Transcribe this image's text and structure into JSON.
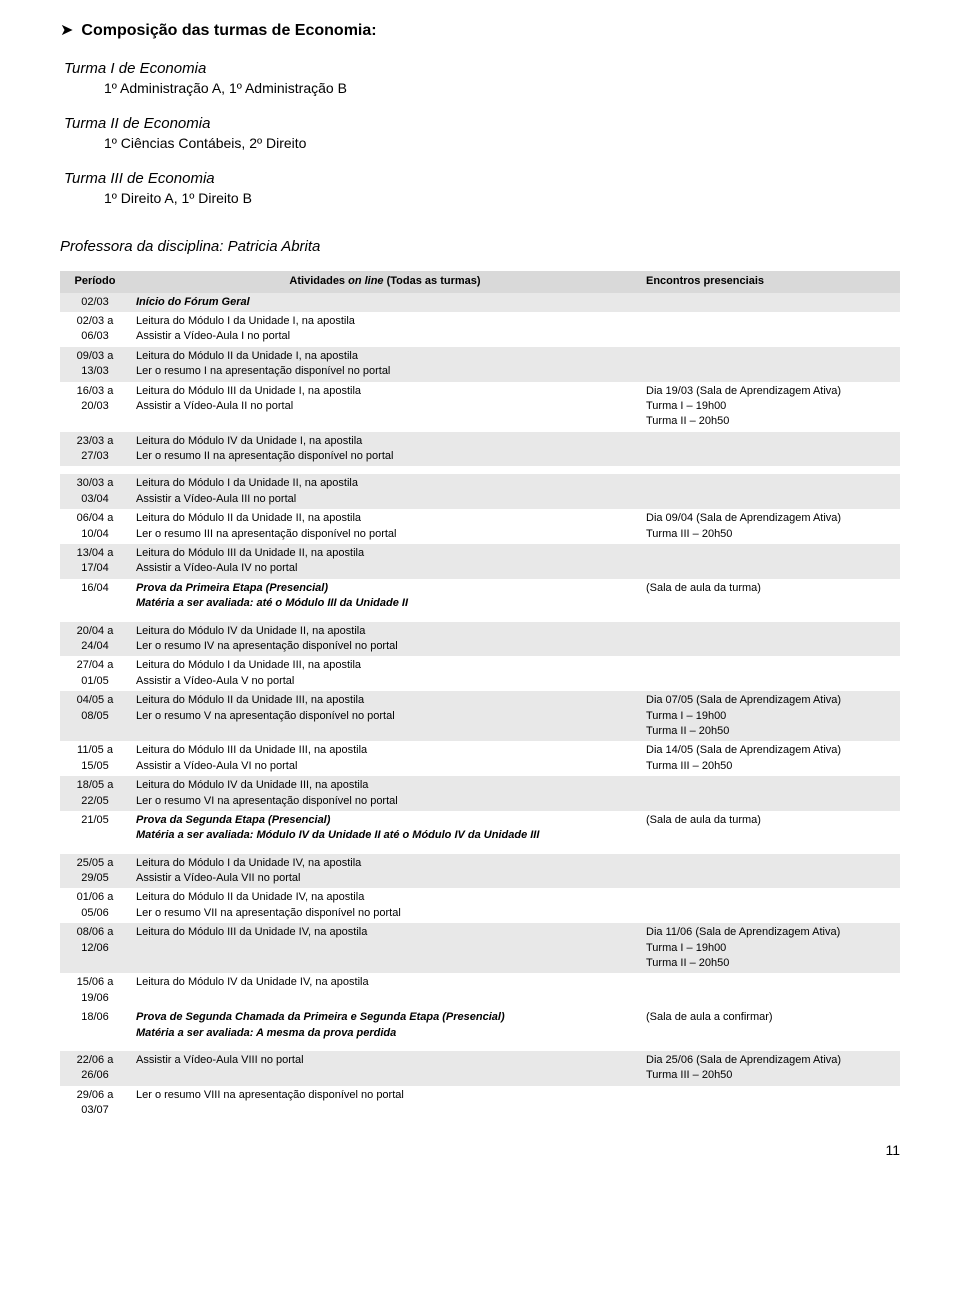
{
  "header": {
    "arrow": "➤",
    "title": "Composição das turmas de Economia:"
  },
  "turmas": [
    {
      "name": "Turma I de Economia",
      "desc": "1º Administração A, 1º Administração B"
    },
    {
      "name": "Turma II de Economia",
      "desc": "1º Ciências Contábeis, 2º Direito"
    },
    {
      "name": "Turma III de Economia",
      "desc": "1º Direito A, 1º Direito B"
    }
  ],
  "professor": "Professora da disciplina: Patricia Abrita",
  "table": {
    "headers": {
      "periodo": "Período",
      "atividades": "Atividades on line (Todas as turmas)",
      "encontros": "Encontros presenciais"
    },
    "atividades_italic_part": "on line",
    "blocks": [
      {
        "rows": [
          {
            "grey": true,
            "period": "02/03",
            "act_bi": "Início do Fórum Geral",
            "enc": ""
          },
          {
            "grey": false,
            "period": "02/03 a 06/03",
            "act": "Leitura do Módulo I da Unidade I, na apostila\nAssistir a Vídeo-Aula I no portal",
            "enc": ""
          },
          {
            "grey": true,
            "period": "09/03 a 13/03",
            "act": "Leitura do Módulo II da Unidade I, na apostila\nLer o resumo I na apresentação disponível no portal",
            "enc": ""
          },
          {
            "grey": false,
            "period": "16/03 a 20/03",
            "act": "Leitura do Módulo III da Unidade I, na apostila\nAssistir a Vídeo-Aula II no portal",
            "enc": "Dia 19/03 (Sala de Aprendizagem Ativa)\nTurma I – 19h00\nTurma II – 20h50"
          },
          {
            "grey": true,
            "period": "23/03 a 27/03",
            "act": "Leitura do Módulo IV da Unidade I, na apostila\nLer o resumo II na apresentação disponível no portal",
            "enc": ""
          }
        ]
      },
      {
        "rows": [
          {
            "grey": true,
            "period": "30/03 a 03/04",
            "act": "Leitura do Módulo I da Unidade II, na apostila\nAssistir a Vídeo-Aula III no portal",
            "enc": ""
          },
          {
            "grey": false,
            "period": "06/04 a 10/04",
            "act": "Leitura do Módulo II da Unidade II, na apostila\nLer o resumo III na apresentação disponível no portal",
            "enc": "Dia 09/04 (Sala de Aprendizagem Ativa)\nTurma III – 20h50"
          },
          {
            "grey": true,
            "period": "13/04 a 17/04",
            "act": "Leitura do Módulo III da Unidade II, na apostila\nAssistir a Vídeo-Aula IV no portal",
            "enc": ""
          },
          {
            "grey": false,
            "period": "16/04",
            "act_bi": "Prova da Primeira Etapa (Presencial)\nMatéria a ser avaliada: até o Módulo III da Unidade II",
            "enc": "(Sala de aula da turma)"
          }
        ]
      },
      {
        "rows": [
          {
            "grey": true,
            "period": "20/04 a 24/04",
            "act": "Leitura do Módulo IV da Unidade II, na apostila\nLer o resumo IV na apresentação disponível no portal",
            "enc": ""
          },
          {
            "grey": false,
            "period": "27/04 a 01/05",
            "act": "Leitura do Módulo I da Unidade III, na apostila\nAssistir a Vídeo-Aula V no portal",
            "enc": ""
          },
          {
            "grey": true,
            "period": "04/05 a 08/05",
            "act": "Leitura do Módulo II da Unidade III, na apostila\nLer o resumo V na apresentação disponível no portal",
            "enc": "Dia 07/05 (Sala de Aprendizagem Ativa)\nTurma I – 19h00\nTurma II – 20h50"
          },
          {
            "grey": false,
            "period": "11/05 a 15/05",
            "act": "Leitura do Módulo III da Unidade III, na apostila\nAssistir a Vídeo-Aula VI no portal",
            "enc": "Dia 14/05 (Sala de Aprendizagem Ativa)\nTurma III – 20h50"
          },
          {
            "grey": true,
            "period": "18/05 a 22/05",
            "act": "Leitura do Módulo IV da Unidade III, na apostila\nLer o resumo VI na apresentação disponível no portal",
            "enc": ""
          },
          {
            "grey": false,
            "period": "21/05",
            "act_bi": "Prova da Segunda Etapa (Presencial)\nMatéria a ser avaliada: Módulo IV da Unidade II até o Módulo IV da Unidade III",
            "enc": "(Sala de aula da turma)"
          }
        ]
      },
      {
        "rows": [
          {
            "grey": true,
            "period": "25/05 a 29/05",
            "act": "Leitura do Módulo I da Unidade IV, na apostila\nAssistir a Vídeo-Aula VII no portal",
            "enc": ""
          },
          {
            "grey": false,
            "period": "01/06 a 05/06",
            "act": "Leitura do Módulo II da Unidade IV, na apostila\nLer o resumo VII na apresentação disponível no portal",
            "enc": ""
          },
          {
            "grey": true,
            "period": "08/06 a 12/06",
            "act": "Leitura do Módulo III da Unidade IV, na apostila",
            "enc": "Dia 11/06 (Sala de Aprendizagem Ativa)\nTurma I – 19h00\nTurma II – 20h50"
          },
          {
            "grey": false,
            "period": "15/06 a 19/06",
            "act": "Leitura do Módulo IV da Unidade IV, na apostila",
            "enc": ""
          },
          {
            "grey": false,
            "period": "18/06",
            "act_bi": "Prova de Segunda Chamada da Primeira e Segunda Etapa (Presencial)\nMatéria a ser avaliada: A mesma da prova perdida",
            "enc": "(Sala de aula a confirmar)"
          }
        ]
      },
      {
        "rows": [
          {
            "grey": true,
            "period": "22/06 a 26/06",
            "act": "Assistir a Vídeo-Aula VIII no portal",
            "enc": "Dia 25/06 (Sala de Aprendizagem Ativa)\nTurma III – 20h50"
          },
          {
            "grey": false,
            "period": "29/06 a 03/07",
            "act": "Ler o resumo VIII na apresentação disponível no portal",
            "enc": ""
          }
        ]
      }
    ]
  },
  "page_number": "11",
  "colors": {
    "header_bg": "#d9d9d9",
    "grey_row_bg": "#e8e8e8",
    "text": "#000000",
    "background": "#ffffff"
  },
  "fonts": {
    "body_family": "Arial",
    "title_size_pt": 16,
    "turma_name_size_pt": 15,
    "turma_desc_size_pt": 14,
    "prof_size_pt": 15,
    "table_size_pt": 11
  }
}
